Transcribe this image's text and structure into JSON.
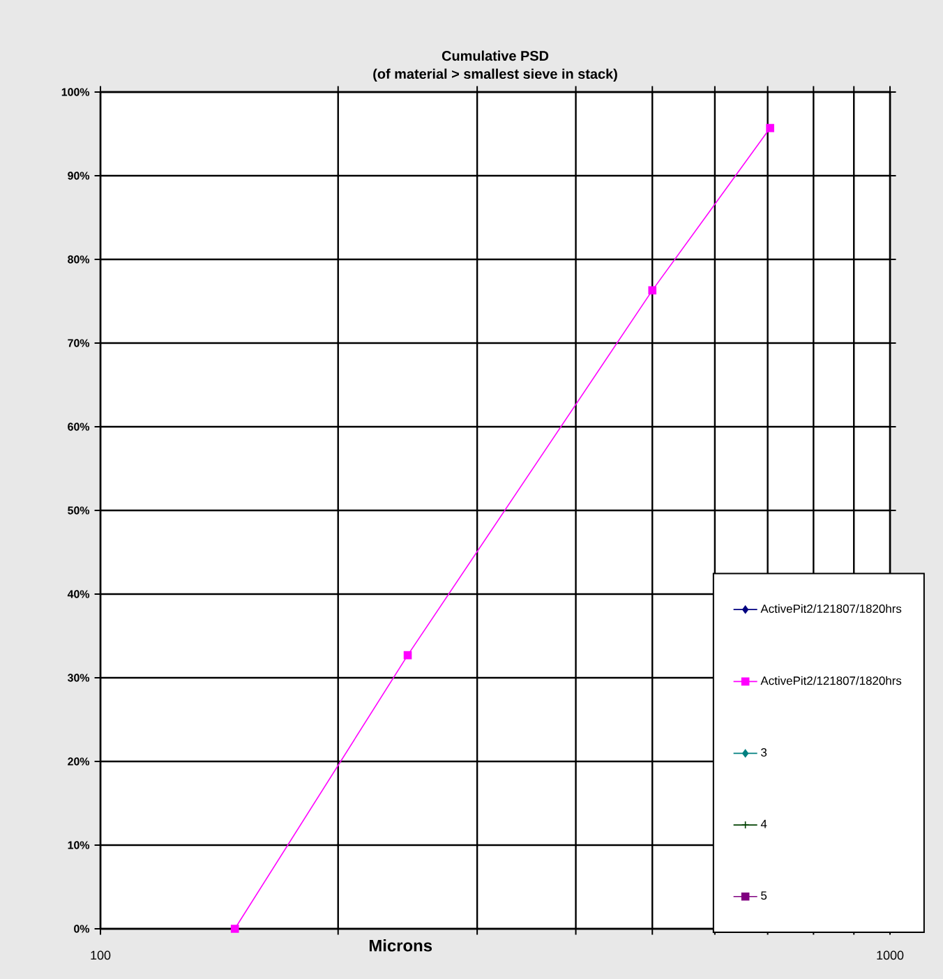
{
  "chart_data": {
    "type": "line",
    "title": "Cumulative PSD",
    "subtitle": "(of material > smallest sieve in stack)",
    "xlabel": "Microns",
    "x": [
      148,
      245,
      500,
      705
    ],
    "series": [
      {
        "name": "ActivePit2/121807/1820hrs",
        "color": "#000080",
        "marker": "diamond",
        "values": [
          null,
          null,
          null,
          null
        ]
      },
      {
        "name": "ActivePit2/121807/1820hrs",
        "color": "#ff00ff",
        "marker": "square",
        "values": [
          0,
          32.7,
          76.3,
          95.7
        ]
      },
      {
        "name": "3",
        "color": "#008080",
        "marker": "diamond",
        "values": [
          null,
          null,
          null,
          null
        ]
      },
      {
        "name": "4",
        "color": "#004000",
        "marker": "cross",
        "values": [
          null,
          null,
          null,
          null
        ]
      },
      {
        "name": "5",
        "color": "#800080",
        "marker": "square",
        "values": [
          null,
          null,
          null,
          null
        ]
      }
    ],
    "log": "x",
    "xlim": [
      100,
      1000
    ],
    "ylim": [
      0,
      100
    ],
    "xticks": [
      100,
      {
        "value": 200,
        "label": null
      },
      {
        "value": 300,
        "label": null
      },
      {
        "value": 400,
        "label": null
      },
      {
        "value": 500,
        "label": null
      },
      {
        "value": 600,
        "label": null
      },
      {
        "value": 700,
        "label": null
      },
      {
        "value": 800,
        "label": null
      },
      {
        "value": 900,
        "label": null
      },
      1000
    ],
    "yticks": [
      {
        "value": 0,
        "label": "0%"
      },
      {
        "value": 10,
        "label": "10%"
      },
      {
        "value": 20,
        "label": "20%"
      },
      {
        "value": 30,
        "label": "30%"
      },
      {
        "value": 40,
        "label": "40%"
      },
      {
        "value": 50,
        "label": "50%"
      },
      {
        "value": 60,
        "label": "60%"
      },
      {
        "value": 70,
        "label": "70%"
      },
      {
        "value": 80,
        "label": "80%"
      },
      {
        "value": 90,
        "label": "90%"
      },
      {
        "value": 100,
        "label": "100%"
      }
    ],
    "grid": true,
    "legend": "bottom right"
  }
}
